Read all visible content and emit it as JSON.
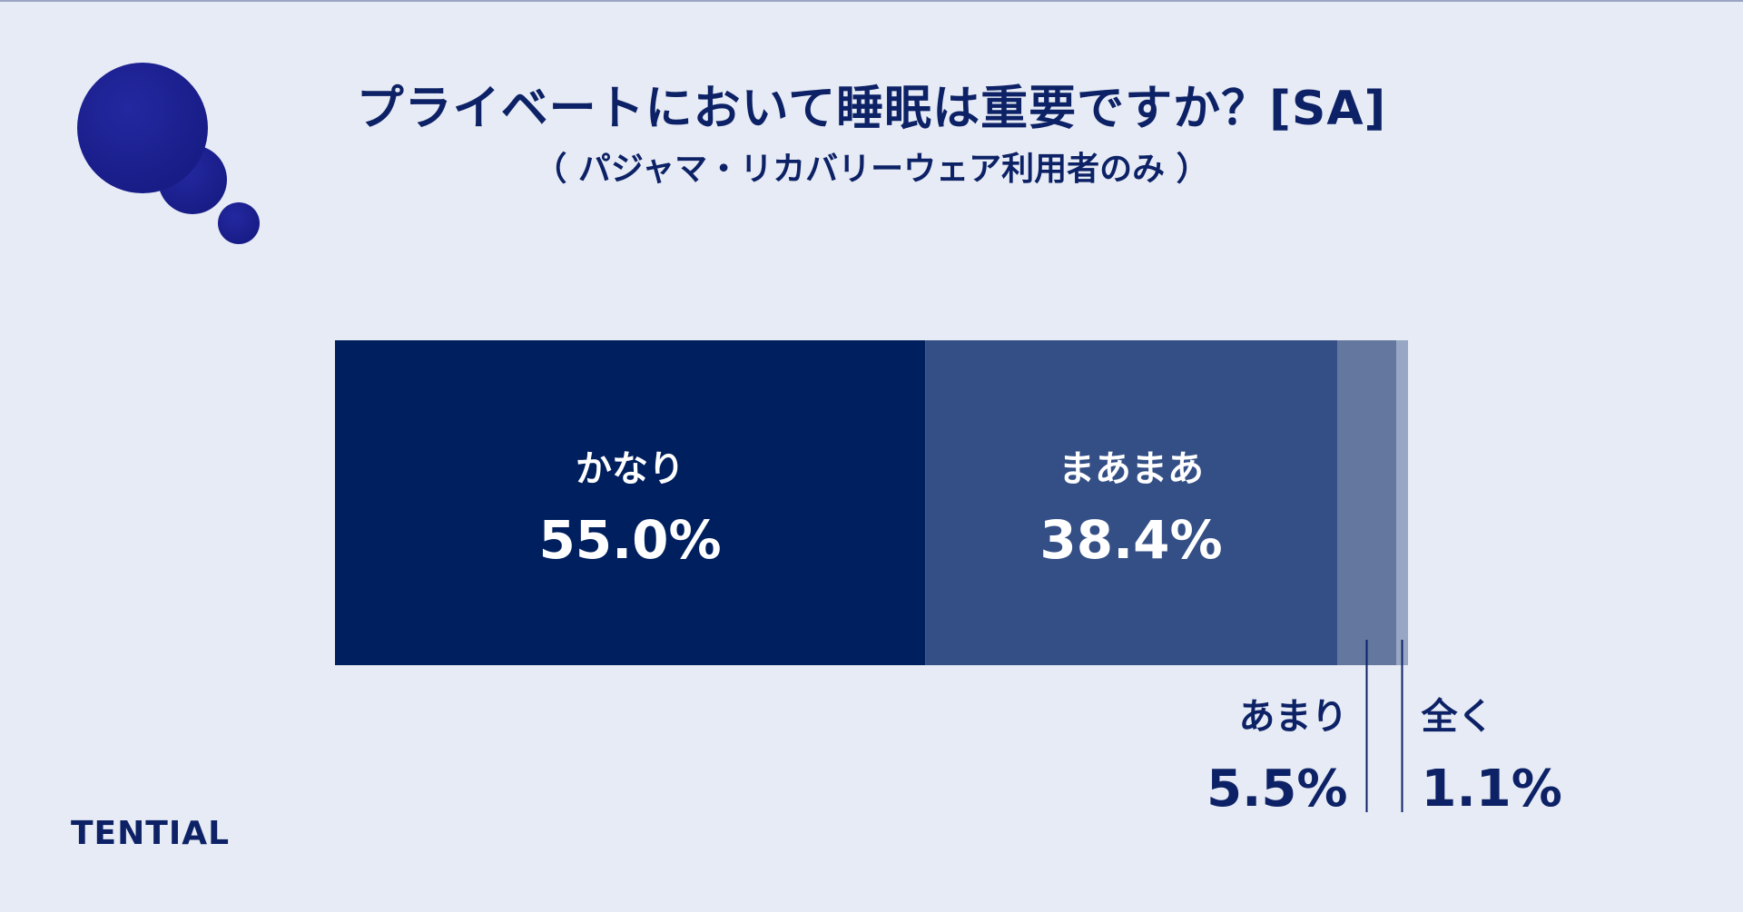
{
  "title": "プライベートにおいて睡眠は重要ですか？[SA]",
  "subtitle": "（ パジャマ・リカバリーウェア利用者のみ ）",
  "brand": "TENTIAL",
  "colors": {
    "background": "#e7ebf5",
    "text_dark": "#0d2266",
    "bubble": "#24279e"
  },
  "chart_data": {
    "type": "bar",
    "orientation": "horizontal-stacked-100",
    "unit": "%",
    "segments": [
      {
        "label": "かなり",
        "value": 55.0,
        "value_label": "55.0%",
        "color": "#001f5e",
        "label_position": "inside"
      },
      {
        "label": "まあまあ",
        "value": 38.4,
        "value_label": "38.4%",
        "color": "#344f86",
        "label_position": "inside"
      },
      {
        "label": "あまり",
        "value": 5.5,
        "value_label": "5.5%",
        "color": "#64789f",
        "label_position": "below"
      },
      {
        "label": "全く",
        "value": 1.1,
        "value_label": "1.1%",
        "color": "#97a6c4",
        "label_position": "below"
      }
    ]
  }
}
